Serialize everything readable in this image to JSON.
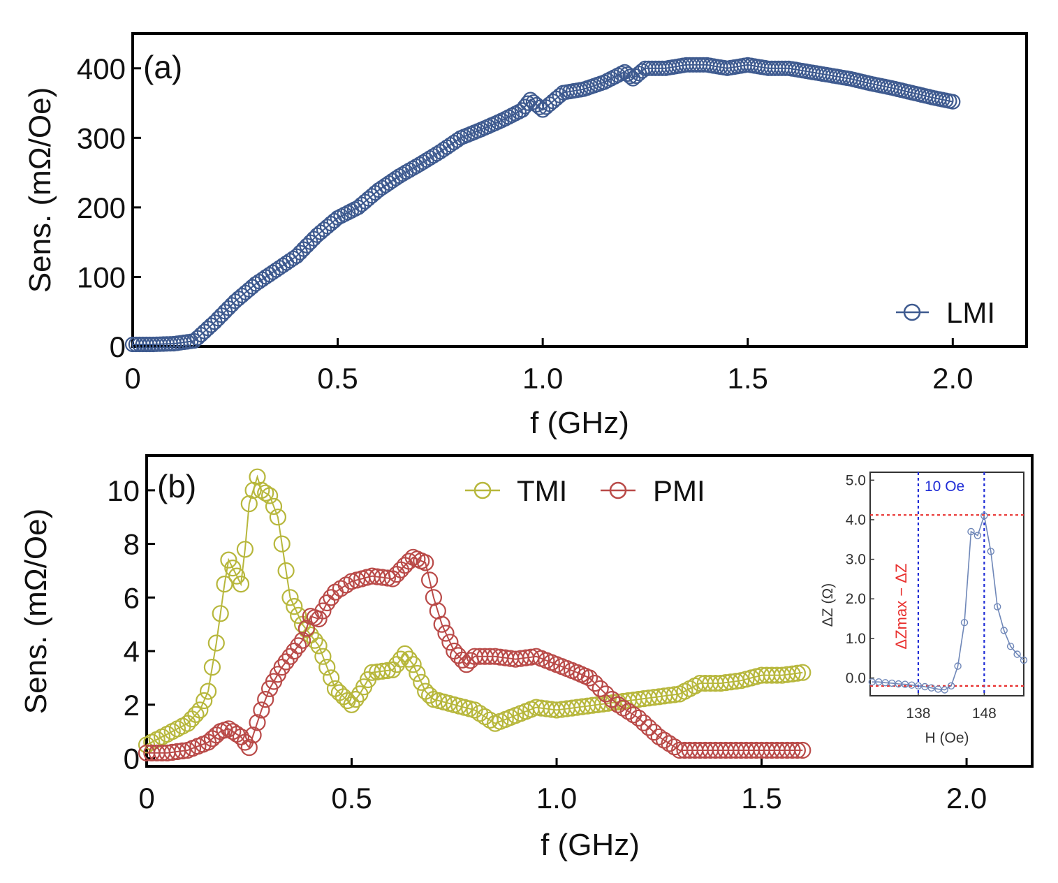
{
  "chart_data": [
    {
      "panel": "(a)",
      "type": "scatter",
      "xlabel": "f (GHz)",
      "ylabel": "Sens. (mΩ/Oe)",
      "xlim": [
        0,
        2.18
      ],
      "ylim": [
        0,
        450
      ],
      "xticks": [
        0,
        0.5,
        1.0,
        1.5,
        2.0
      ],
      "xtick_labels": [
        "0",
        "0.5",
        "1.0",
        "1.5",
        "2.0"
      ],
      "yticks": [
        0,
        100,
        200,
        300,
        400
      ],
      "ytick_labels": [
        "0",
        "100",
        "200",
        "300",
        "400"
      ],
      "legend_position": "bottom-right",
      "series": [
        {
          "name": "LMI",
          "color": "#3e5a8f",
          "x": [
            0,
            0.05,
            0.1,
            0.15,
            0.2,
            0.25,
            0.3,
            0.35,
            0.4,
            0.45,
            0.5,
            0.55,
            0.6,
            0.65,
            0.7,
            0.75,
            0.8,
            0.85,
            0.9,
            0.95,
            0.97,
            1.0,
            1.05,
            1.1,
            1.15,
            1.2,
            1.22,
            1.25,
            1.3,
            1.35,
            1.4,
            1.45,
            1.5,
            1.55,
            1.6,
            1.65,
            1.7,
            1.75,
            1.8,
            1.85,
            1.9,
            1.95,
            2.0
          ],
          "y": [
            3,
            3,
            4,
            8,
            35,
            65,
            90,
            110,
            130,
            160,
            185,
            200,
            225,
            245,
            262,
            280,
            300,
            312,
            325,
            340,
            355,
            340,
            365,
            370,
            380,
            395,
            385,
            400,
            400,
            405,
            405,
            400,
            405,
            400,
            400,
            395,
            390,
            385,
            378,
            372,
            365,
            358,
            352
          ]
        }
      ]
    },
    {
      "panel": "(b)",
      "type": "scatter",
      "xlabel": "f (GHz)",
      "ylabel": "Sens. (mΩ/Oe)",
      "xlim": [
        0,
        2.16
      ],
      "ylim": [
        -0.3,
        11.3
      ],
      "xticks": [
        0,
        0.5,
        1.0,
        1.5,
        2.0
      ],
      "xtick_labels": [
        "0",
        "0.5",
        "1.0",
        "1.5",
        "2.0"
      ],
      "yticks": [
        0,
        2,
        4,
        6,
        8,
        10
      ],
      "ytick_labels": [
        "0",
        "2",
        "4",
        "6",
        "8",
        "10"
      ],
      "legend_position": "top-center",
      "series": [
        {
          "name": "TMI",
          "color": "#b7b73c",
          "x": [
            0,
            0.05,
            0.1,
            0.13,
            0.15,
            0.17,
            0.19,
            0.2,
            0.22,
            0.23,
            0.24,
            0.25,
            0.27,
            0.28,
            0.3,
            0.32,
            0.33,
            0.35,
            0.38,
            0.4,
            0.42,
            0.44,
            0.46,
            0.48,
            0.5,
            0.52,
            0.55,
            0.6,
            0.63,
            0.65,
            0.68,
            0.7,
            0.75,
            0.8,
            0.85,
            0.9,
            0.95,
            1.0,
            1.05,
            1.1,
            1.15,
            1.2,
            1.25,
            1.3,
            1.35,
            1.4,
            1.45,
            1.5,
            1.55,
            1.6
          ],
          "y": [
            0.5,
            0.9,
            1.3,
            1.8,
            2.5,
            4.3,
            6.5,
            7.4,
            6.8,
            6.5,
            7.8,
            9.5,
            10.5,
            10.0,
            9.8,
            9.0,
            8.0,
            6.0,
            5.0,
            4.6,
            4.2,
            3.4,
            2.6,
            2.3,
            2.0,
            2.4,
            3.2,
            3.3,
            3.9,
            3.5,
            2.5,
            2.2,
            2.0,
            1.8,
            1.3,
            1.6,
            1.9,
            1.8,
            1.9,
            2.0,
            2.1,
            2.2,
            2.3,
            2.4,
            2.8,
            2.8,
            2.9,
            3.1,
            3.1,
            3.2
          ]
        },
        {
          "name": "PMI",
          "color": "#b94a48",
          "x": [
            0,
            0.05,
            0.1,
            0.15,
            0.18,
            0.2,
            0.23,
            0.25,
            0.28,
            0.3,
            0.33,
            0.35,
            0.38,
            0.4,
            0.42,
            0.44,
            0.46,
            0.5,
            0.55,
            0.6,
            0.63,
            0.65,
            0.68,
            0.7,
            0.72,
            0.75,
            0.78,
            0.8,
            0.85,
            0.9,
            0.95,
            1.0,
            1.05,
            1.08,
            1.12,
            1.15,
            1.2,
            1.25,
            1.3,
            1.35,
            1.4,
            1.45,
            1.5,
            1.55,
            1.6
          ],
          "y": [
            0.2,
            0.2,
            0.3,
            0.6,
            1.0,
            1.1,
            0.8,
            0.4,
            1.8,
            2.6,
            3.4,
            3.8,
            4.4,
            5.3,
            5.2,
            5.8,
            6.2,
            6.6,
            6.8,
            6.7,
            7.2,
            7.5,
            7.3,
            6.0,
            5.0,
            4.0,
            3.5,
            3.8,
            3.8,
            3.7,
            3.8,
            3.5,
            3.2,
            3.0,
            2.4,
            2.0,
            1.5,
            0.8,
            0.3,
            0.3,
            0.3,
            0.3,
            0.3,
            0.3,
            0.3
          ]
        }
      ],
      "inset": {
        "type": "line",
        "xlabel": "H (Oe)",
        "ylabel": "ΔZ (Ω)",
        "xlim": [
          130.7,
          154
        ],
        "ylim": [
          -0.45,
          5.2
        ],
        "xticks": [
          138,
          148
        ],
        "xtick_labels": [
          "138",
          "148"
        ],
        "yticks": [
          0.0,
          1.0,
          2.0,
          3.0,
          4.0,
          5.0
        ],
        "ytick_labels": [
          "0.0",
          "1.0",
          "2.0",
          "3.0",
          "4.0",
          "5.0"
        ],
        "series": {
          "color": "#6f87b8",
          "x": [
            131,
            132,
            133,
            134,
            135,
            136,
            137,
            138,
            139,
            140,
            141,
            142,
            143,
            144,
            145,
            146,
            147,
            148,
            149,
            150,
            151,
            152,
            153,
            154
          ],
          "y": [
            -0.1,
            -0.1,
            -0.12,
            -0.13,
            -0.15,
            -0.16,
            -0.18,
            -0.2,
            -0.22,
            -0.25,
            -0.28,
            -0.3,
            -0.2,
            0.3,
            1.4,
            3.7,
            3.6,
            4.1,
            3.2,
            1.8,
            1.2,
            0.8,
            0.6,
            0.45
          ]
        },
        "vlines": [
          138,
          148
        ],
        "hlines": [
          4.12,
          -0.2
        ],
        "vline_color": "#1f2cd6",
        "hline_color": "#e8302e",
        "annotation_range": "10 Oe",
        "annotation_delta": "ΔZmax − ΔZ",
        "annotation_delta_color": "#e8302e",
        "annotation_range_color": "#1f2cd6"
      }
    }
  ]
}
